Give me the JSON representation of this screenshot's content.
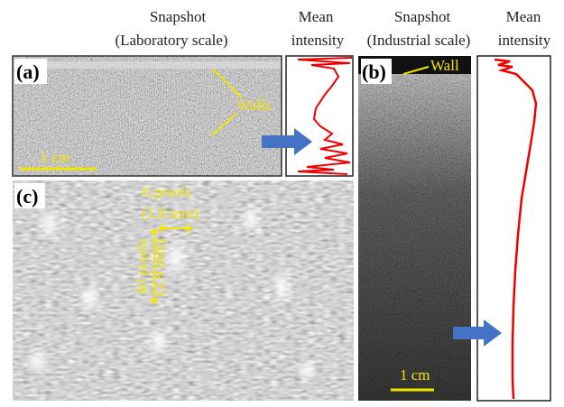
{
  "header": {
    "lab_snapshot": "Snapshot",
    "lab_scale": "(Laboratory scale)",
    "lab_mean": "Mean",
    "lab_intensity": "intensity",
    "ind_snapshot": "Snapshot",
    "ind_scale": "(Industrial scale)",
    "ind_mean": "Mean",
    "ind_intensity": "intensity"
  },
  "panels": {
    "a": {
      "label": "(a)",
      "walls": "Walls",
      "scale_bar": "1 cm"
    },
    "b": {
      "label": "(b)",
      "wall": "Wall",
      "scale_bar": "1 cm"
    },
    "c": {
      "label": "(c)",
      "h_pixels": "6 pixels",
      "h_mm": "(1.8 mm)",
      "v_pixels": "40 pixels",
      "v_mm": "(2.9 mm)"
    }
  }
}
